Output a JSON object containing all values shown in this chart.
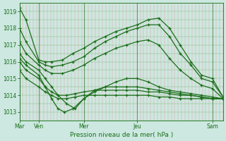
{
  "background_color": "#cce8e0",
  "plot_bg_color": "#cce8e0",
  "line_color": "#1a6e1a",
  "grid_color_v": "#e8a0a0",
  "grid_color_h": "#88bb88",
  "xlabel": "Pression niveau de la mer( hPa )",
  "ylim": [
    1012.5,
    1019.5
  ],
  "yticks": [
    1013,
    1014,
    1015,
    1016,
    1017,
    1018,
    1019
  ],
  "xtick_labels": [
    "Mar",
    "Ven",
    "Mer",
    "Jeu",
    "Sam"
  ],
  "xtick_positions": [
    0.0,
    0.9,
    3.0,
    5.5,
    9.0
  ],
  "xlim": [
    0,
    9.5
  ],
  "lines": [
    {
      "x": [
        0.0,
        0.3,
        0.9,
        1.2,
        1.5,
        2.0,
        2.5,
        3.0,
        3.5,
        4.0,
        4.5,
        5.0,
        5.5,
        6.0,
        6.5,
        7.0,
        7.5,
        8.0,
        8.5,
        9.0,
        9.5
      ],
      "y": [
        1019.2,
        1018.5,
        1016.1,
        1016.0,
        1016.0,
        1016.1,
        1016.5,
        1016.8,
        1017.2,
        1017.5,
        1017.8,
        1018.0,
        1018.2,
        1018.5,
        1018.6,
        1018.0,
        1017.0,
        1016.0,
        1015.2,
        1015.0,
        1013.9
      ]
    },
    {
      "x": [
        0.0,
        0.3,
        0.9,
        1.2,
        1.5,
        2.0,
        2.5,
        3.0,
        3.5,
        4.0,
        4.5,
        5.0,
        5.5,
        6.0,
        6.5,
        7.0,
        7.5,
        8.0,
        8.5,
        9.0,
        9.5
      ],
      "y": [
        1018.0,
        1017.2,
        1016.0,
        1015.8,
        1015.7,
        1015.8,
        1016.0,
        1016.3,
        1016.8,
        1017.2,
        1017.5,
        1017.8,
        1018.0,
        1018.2,
        1018.2,
        1017.5,
        1016.5,
        1015.8,
        1015.0,
        1014.8,
        1013.9
      ]
    },
    {
      "x": [
        0.0,
        0.3,
        0.9,
        1.2,
        1.5,
        2.0,
        2.5,
        3.0,
        3.5,
        4.0,
        4.5,
        5.0,
        5.5,
        6.0,
        6.5,
        7.0,
        7.5,
        8.0,
        8.5,
        9.0,
        9.5
      ],
      "y": [
        1017.2,
        1016.5,
        1015.8,
        1015.5,
        1015.3,
        1015.3,
        1015.5,
        1015.8,
        1016.2,
        1016.5,
        1016.8,
        1017.0,
        1017.2,
        1017.3,
        1017.0,
        1016.2,
        1015.5,
        1015.0,
        1014.6,
        1014.4,
        1013.8
      ]
    },
    {
      "x": [
        0.0,
        0.3,
        0.9,
        1.2,
        1.5,
        1.8,
        2.2,
        2.6,
        3.0,
        3.5,
        4.0,
        4.5,
        5.0,
        5.5,
        6.0,
        6.5,
        7.0,
        7.5,
        8.0,
        8.5,
        9.0,
        9.5
      ],
      "y": [
        1016.5,
        1016.0,
        1015.5,
        1015.0,
        1014.5,
        1014.0,
        1013.5,
        1013.2,
        1013.8,
        1014.2,
        1014.5,
        1014.8,
        1015.0,
        1015.0,
        1014.8,
        1014.5,
        1014.3,
        1014.2,
        1014.1,
        1014.0,
        1013.9,
        1013.8
      ]
    },
    {
      "x": [
        0.0,
        0.3,
        0.9,
        1.2,
        1.5,
        1.8,
        2.1,
        2.5,
        3.0,
        3.5,
        4.0,
        4.5,
        5.0,
        5.5,
        6.0,
        6.5,
        7.0,
        7.5,
        8.0,
        8.5,
        9.0,
        9.5
      ],
      "y": [
        1016.2,
        1015.8,
        1015.2,
        1014.5,
        1013.8,
        1013.2,
        1013.0,
        1013.2,
        1013.8,
        1014.3,
        1014.5,
        1014.5,
        1014.5,
        1014.5,
        1014.4,
        1014.3,
        1014.2,
        1014.1,
        1014.0,
        1013.9,
        1013.8,
        1013.8
      ]
    },
    {
      "x": [
        0.0,
        0.3,
        0.9,
        1.2,
        1.5,
        1.8,
        2.2,
        2.6,
        3.0,
        3.5,
        4.0,
        4.5,
        5.0,
        5.5,
        6.0,
        6.5,
        7.0,
        7.5,
        8.0,
        8.5,
        9.0,
        9.5
      ],
      "y": [
        1016.0,
        1015.5,
        1015.0,
        1014.5,
        1014.2,
        1014.0,
        1014.0,
        1014.1,
        1014.2,
        1014.3,
        1014.3,
        1014.3,
        1014.3,
        1014.3,
        1014.2,
        1014.2,
        1014.1,
        1014.0,
        1014.0,
        1013.9,
        1013.8,
        1013.8
      ]
    },
    {
      "x": [
        0.0,
        0.3,
        0.9,
        1.2,
        1.5,
        1.8,
        2.2,
        2.6,
        3.0,
        3.5,
        4.0,
        4.5,
        5.0,
        5.5,
        6.0,
        6.5,
        7.0,
        7.5,
        8.0,
        8.5,
        9.0,
        9.5
      ],
      "y": [
        1015.5,
        1015.0,
        1014.5,
        1014.2,
        1014.0,
        1013.8,
        1013.8,
        1013.9,
        1014.0,
        1014.0,
        1014.0,
        1014.0,
        1014.0,
        1014.0,
        1014.0,
        1013.9,
        1013.9,
        1013.8,
        1013.8,
        1013.8,
        1013.8,
        1013.8
      ]
    }
  ]
}
